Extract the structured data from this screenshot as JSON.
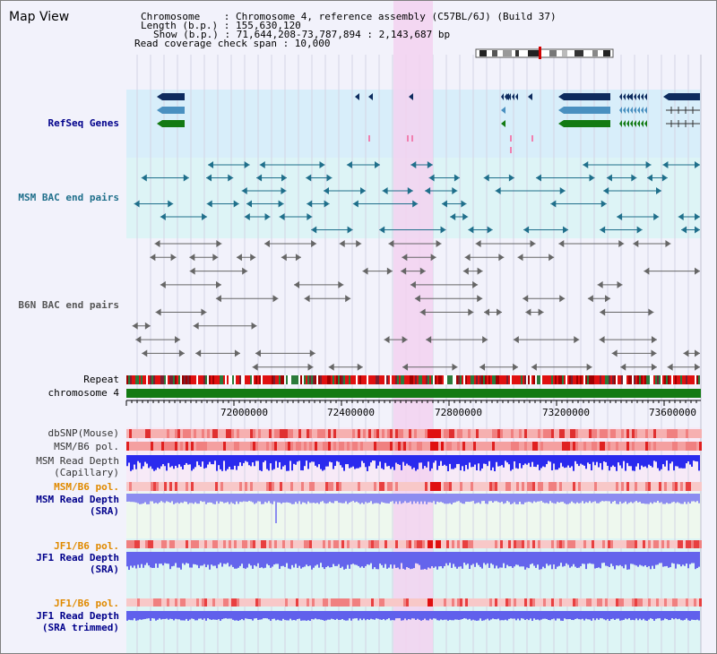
{
  "view_title": "Map View",
  "header": {
    "line1": "Chromosome    : Chromosome 4, reference assembly (C57BL/6J) (Build 37)",
    "line2": "Length (b.p.) : 155,630,120",
    "line3": "Show (b.p.) : 71,644,208-73,787,894 : 2,143,687 bp",
    "line4": "Read coverage check span : 10,000"
  },
  "tracks": {
    "refseq": "RefSeq Genes",
    "msm_bac": "MSM BAC end pairs",
    "b6n_bac": "B6N BAC end pairs",
    "repeat": "Repeat",
    "chromosome": "chromosome 4",
    "dbsnp": "dbSNP(Mouse)",
    "msm_b6_pol_1": "MSM/B6 pol.",
    "msm_depth_cap": "MSM Read Depth\n(Capillary)",
    "msm_b6_pol_2": "MSM/B6 pol.",
    "msm_depth_sra": "MSM Read Depth\n(SRA)",
    "jf1_b6_pol_1": "JF1/B6 pol.",
    "jf1_depth_sra": "JF1 Read Depth\n(SRA)",
    "jf1_b6_pol_2": "JF1/B6 pol.",
    "jf1_depth_sra_trim": "JF1 Read Depth\n(SRA trimmed)"
  },
  "axis_ticks": [
    "72000000",
    "72400000",
    "72800000",
    "73200000",
    "73600000"
  ],
  "colors": {
    "gene_navy": "#0d2b5e",
    "gene_steel": "#4a90c0",
    "gene_green": "#137a13",
    "msm_teal": "#1f6f8b",
    "b6n_gray": "#666666",
    "highlight": "#f3d2f0",
    "pol_orange": "#e08a00",
    "label_blue": "#00008b",
    "label_teal": "#1f6f8b",
    "label_gray": "#555555"
  }
}
